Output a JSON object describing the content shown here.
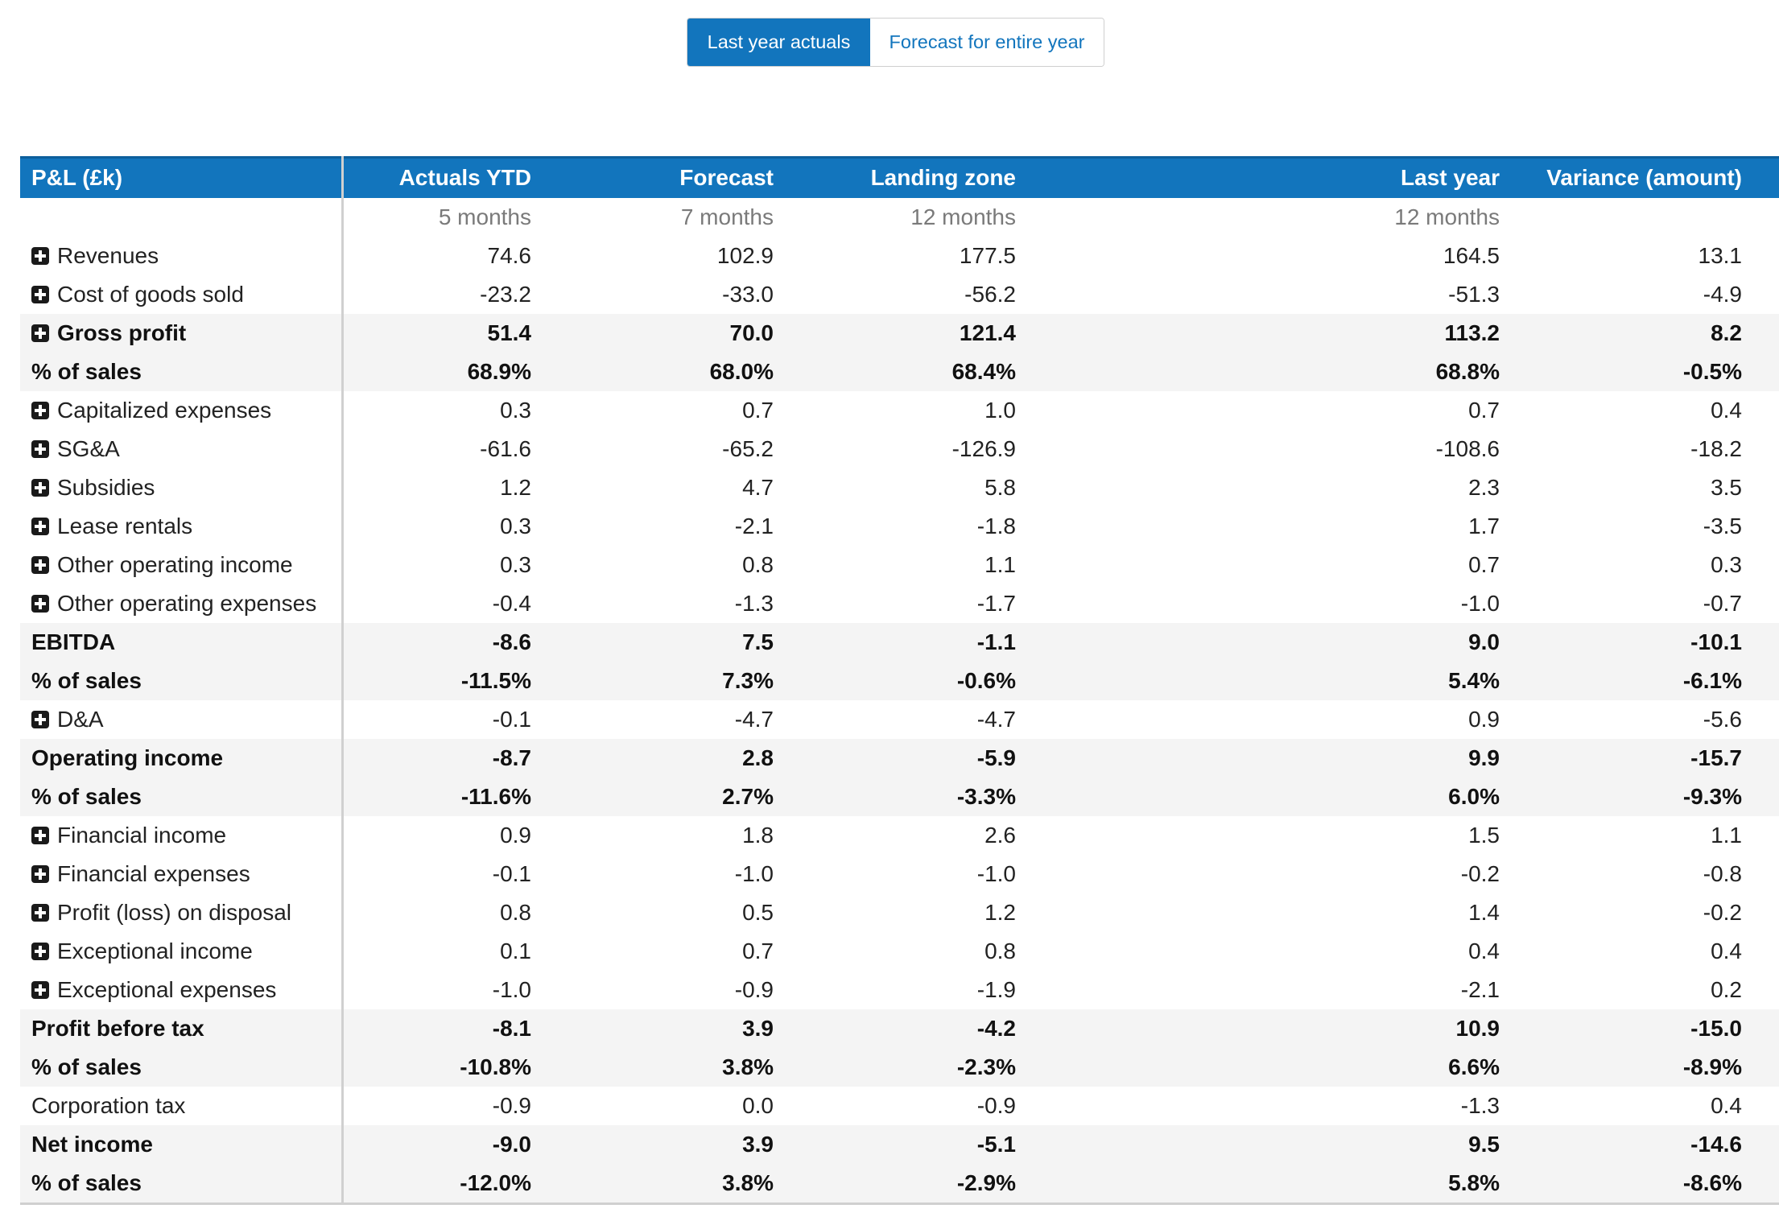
{
  "view_toggle": {
    "active_label": "Last year actuals",
    "inactive_label": "Forecast for entire year"
  },
  "table": {
    "headers": {
      "label": "P&L (£k)",
      "actuals": "Actuals YTD",
      "forecast": "Forecast",
      "landing": "Landing zone",
      "last_year": "Last year",
      "variance": "Variance (amount)"
    },
    "subheaders": {
      "actuals": "5 months",
      "forecast": "7 months",
      "landing": "12 months",
      "last_year": "12 months"
    },
    "rows": [
      {
        "label": "Revenues",
        "expandable": true,
        "bold": false,
        "values": [
          "74.6",
          "102.9",
          "177.5",
          "164.5",
          "13.1"
        ]
      },
      {
        "label": "Cost of goods sold",
        "expandable": true,
        "bold": false,
        "values": [
          "-23.2",
          "-33.0",
          "-56.2",
          "-51.3",
          "-4.9"
        ]
      },
      {
        "label": "Gross profit",
        "expandable": true,
        "bold": true,
        "values": [
          "51.4",
          "70.0",
          "121.4",
          "113.2",
          "8.2"
        ]
      },
      {
        "label": "% of sales",
        "expandable": false,
        "bold": true,
        "values": [
          "68.9%",
          "68.0%",
          "68.4%",
          "68.8%",
          "-0.5%"
        ]
      },
      {
        "label": "Capitalized expenses",
        "expandable": true,
        "bold": false,
        "values": [
          "0.3",
          "0.7",
          "1.0",
          "0.7",
          "0.4"
        ]
      },
      {
        "label": "SG&A",
        "expandable": true,
        "bold": false,
        "values": [
          "-61.6",
          "-65.2",
          "-126.9",
          "-108.6",
          "-18.2"
        ]
      },
      {
        "label": "Subsidies",
        "expandable": true,
        "bold": false,
        "values": [
          "1.2",
          "4.7",
          "5.8",
          "2.3",
          "3.5"
        ]
      },
      {
        "label": "Lease rentals",
        "expandable": true,
        "bold": false,
        "values": [
          "0.3",
          "-2.1",
          "-1.8",
          "1.7",
          "-3.5"
        ]
      },
      {
        "label": "Other operating income",
        "expandable": true,
        "bold": false,
        "values": [
          "0.3",
          "0.8",
          "1.1",
          "0.7",
          "0.3"
        ]
      },
      {
        "label": "Other operating expenses",
        "expandable": true,
        "bold": false,
        "values": [
          "-0.4",
          "-1.3",
          "-1.7",
          "-1.0",
          "-0.7"
        ]
      },
      {
        "label": "EBITDA",
        "expandable": false,
        "bold": true,
        "values": [
          "-8.6",
          "7.5",
          "-1.1",
          "9.0",
          "-10.1"
        ]
      },
      {
        "label": "% of sales",
        "expandable": false,
        "bold": true,
        "values": [
          "-11.5%",
          "7.3%",
          "-0.6%",
          "5.4%",
          "-6.1%"
        ]
      },
      {
        "label": "D&A",
        "expandable": true,
        "bold": false,
        "values": [
          "-0.1",
          "-4.7",
          "-4.7",
          "0.9",
          "-5.6"
        ]
      },
      {
        "label": "Operating income",
        "expandable": false,
        "bold": true,
        "values": [
          "-8.7",
          "2.8",
          "-5.9",
          "9.9",
          "-15.7"
        ]
      },
      {
        "label": "% of sales",
        "expandable": false,
        "bold": true,
        "values": [
          "-11.6%",
          "2.7%",
          "-3.3%",
          "6.0%",
          "-9.3%"
        ]
      },
      {
        "label": "Financial income",
        "expandable": true,
        "bold": false,
        "values": [
          "0.9",
          "1.8",
          "2.6",
          "1.5",
          "1.1"
        ]
      },
      {
        "label": "Financial expenses",
        "expandable": true,
        "bold": false,
        "values": [
          "-0.1",
          "-1.0",
          "-1.0",
          "-0.2",
          "-0.8"
        ]
      },
      {
        "label": "Profit (loss) on disposal",
        "expandable": true,
        "bold": false,
        "values": [
          "0.8",
          "0.5",
          "1.2",
          "1.4",
          "-0.2"
        ]
      },
      {
        "label": "Exceptional income",
        "expandable": true,
        "bold": false,
        "values": [
          "0.1",
          "0.7",
          "0.8",
          "0.4",
          "0.4"
        ]
      },
      {
        "label": "Exceptional expenses",
        "expandable": true,
        "bold": false,
        "values": [
          "-1.0",
          "-0.9",
          "-1.9",
          "-2.1",
          "0.2"
        ]
      },
      {
        "label": "Profit before tax",
        "expandable": false,
        "bold": true,
        "values": [
          "-8.1",
          "3.9",
          "-4.2",
          "10.9",
          "-15.0"
        ]
      },
      {
        "label": "% of sales",
        "expandable": false,
        "bold": true,
        "values": [
          "-10.8%",
          "3.8%",
          "-2.3%",
          "6.6%",
          "-8.9%"
        ]
      },
      {
        "label": "Corporation tax",
        "expandable": false,
        "bold": false,
        "values": [
          "-0.9",
          "0.0",
          "-0.9",
          "-1.3",
          "0.4"
        ]
      },
      {
        "label": "Net income",
        "expandable": false,
        "bold": true,
        "values": [
          "-9.0",
          "3.9",
          "-5.1",
          "9.5",
          "-14.6"
        ]
      },
      {
        "label": "% of sales",
        "expandable": false,
        "bold": true,
        "values": [
          "-12.0%",
          "3.8%",
          "-2.9%",
          "5.8%",
          "-8.6%"
        ]
      }
    ]
  },
  "icons": {
    "expand": "plus-square-icon"
  },
  "colors": {
    "accent": "#1275bd",
    "row_highlight": "#f4f4f4",
    "subheader_text": "#7a7a7a"
  }
}
